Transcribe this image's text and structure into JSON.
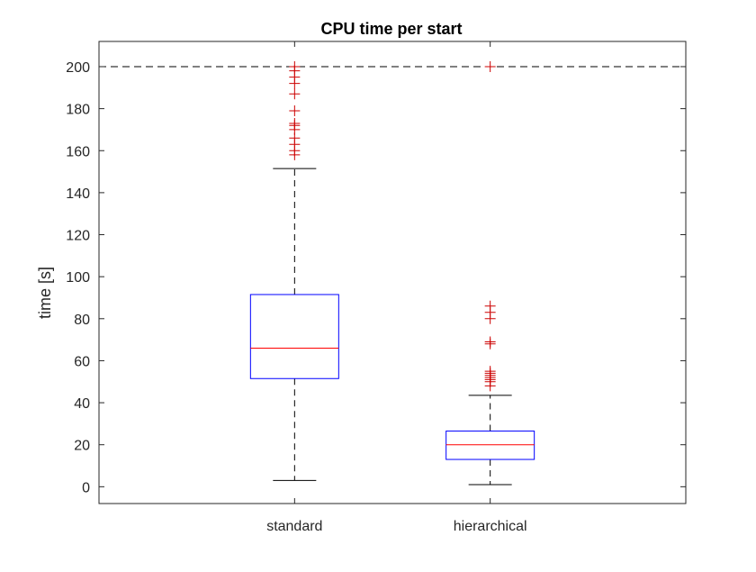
{
  "chart_data": {
    "type": "boxplot",
    "title": "CPU time per start",
    "xlabel": "",
    "ylabel": "time [s]",
    "ylim": [
      -8,
      212
    ],
    "yticks": [
      0,
      20,
      40,
      60,
      80,
      100,
      120,
      140,
      160,
      180,
      200
    ],
    "grid": false,
    "reference_line": {
      "y": 200,
      "style": "dashed"
    },
    "colors": {
      "box": "#0000ff",
      "median": "#ff0000",
      "whisker": "#000000",
      "outlier": "#cc0000",
      "reference": "#000000",
      "axes": "#262626"
    },
    "boxes": [
      {
        "category": "standard",
        "whisker_low": 3,
        "q1": 51.5,
        "median": 66,
        "q3": 91.5,
        "whisker_high": 151.5,
        "outliers": [
          158,
          160,
          163,
          166,
          170,
          172,
          173,
          179,
          187,
          192,
          195,
          198,
          200
        ]
      },
      {
        "category": "hierarchical",
        "whisker_low": 1,
        "q1": 13,
        "median": 20,
        "q3": 26.5,
        "whisker_high": 43.5,
        "outliers": [
          48,
          50,
          51,
          52,
          53,
          54,
          55,
          68,
          69,
          80,
          83,
          86,
          200
        ]
      }
    ]
  }
}
